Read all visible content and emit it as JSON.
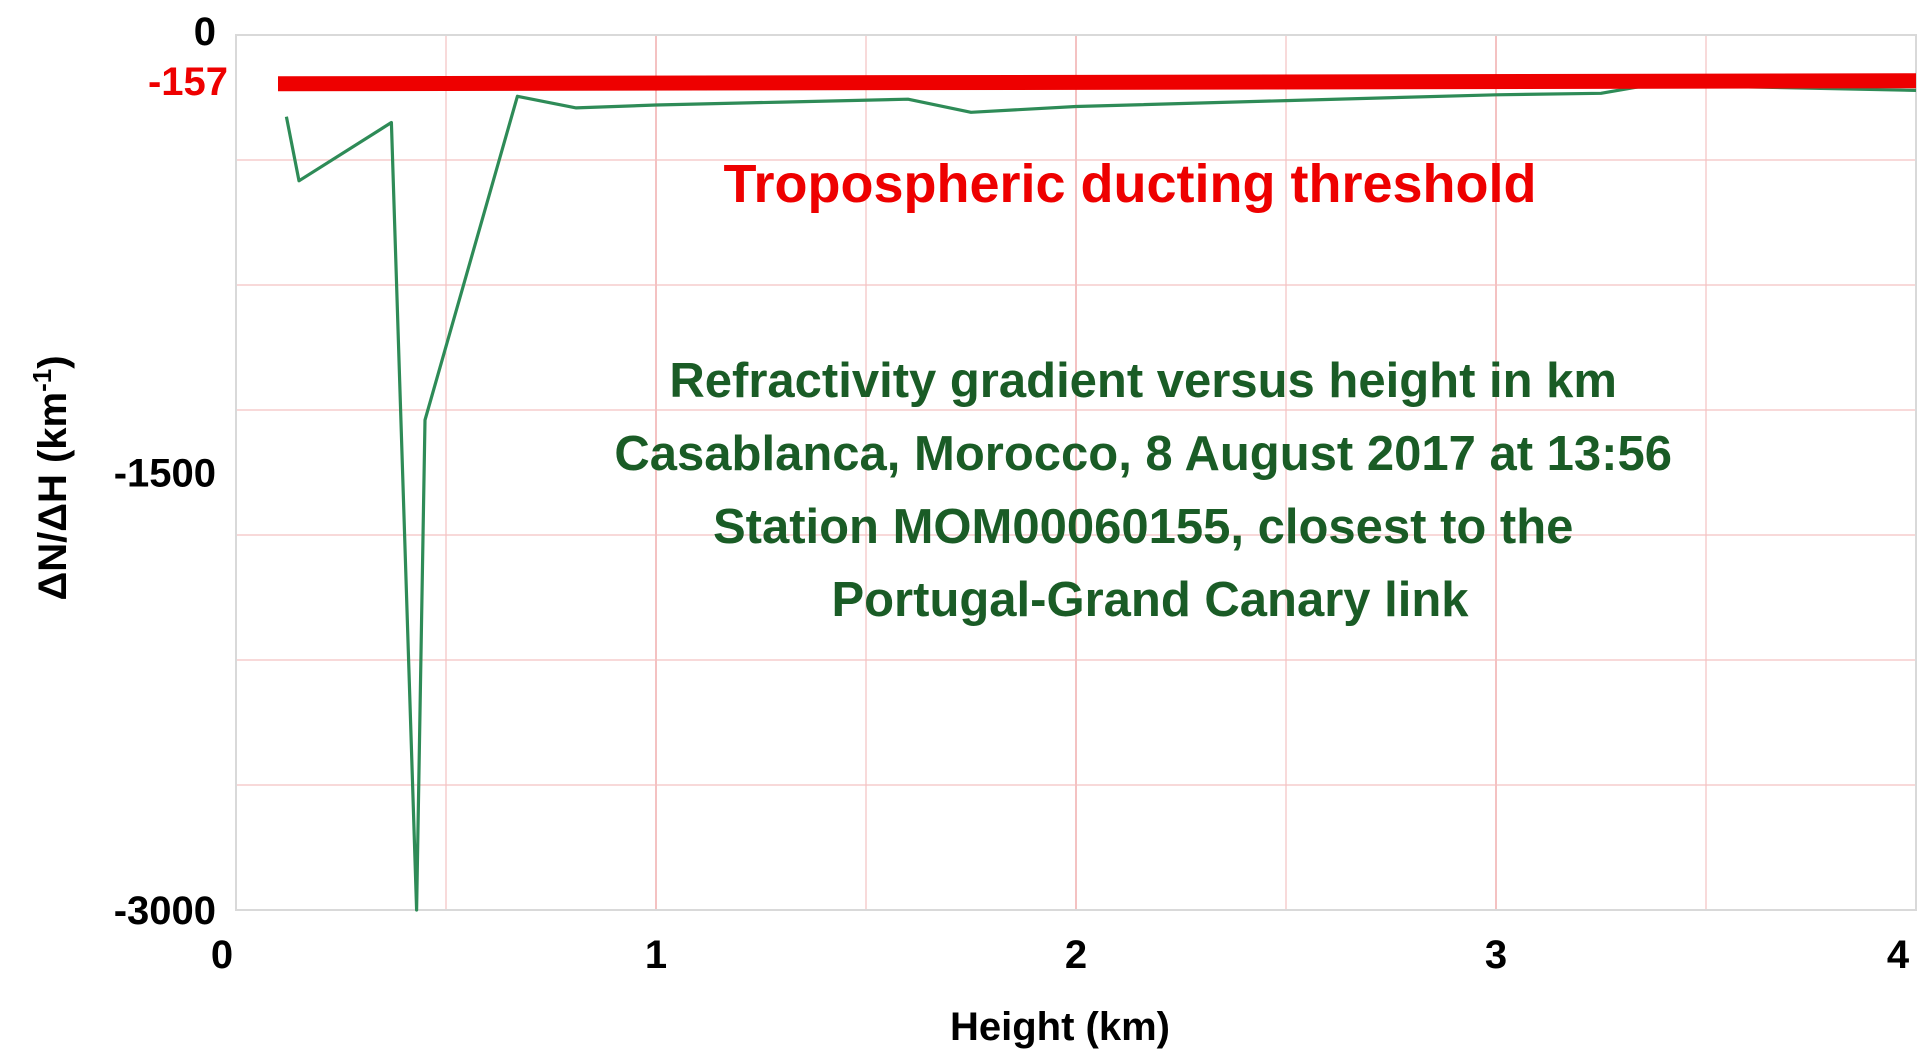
{
  "chart_data": {
    "type": "line",
    "title": "",
    "xlabel": "Height (km)",
    "ylabel_main": "ΔN/ΔH (km",
    "ylabel_sup": "-1",
    "ylabel_close": ")",
    "xlim": [
      0,
      4
    ],
    "ylim": [
      -3000,
      0
    ],
    "x_ticks": [
      0,
      1,
      2,
      3,
      4
    ],
    "x_tick_labels": [
      "0",
      "1",
      "2",
      "3",
      "4"
    ],
    "y_ticks": [
      0,
      -1500,
      -3000
    ],
    "y_tick_labels": [
      "0",
      "-1500",
      "-3000"
    ],
    "grid": true,
    "grid_color": "#f4c2c2",
    "series": [
      {
        "color": "#2e8b57",
        "x": [
          0.12,
          0.15,
          0.37,
          0.43,
          0.45,
          0.67,
          0.81,
          1.0,
          1.3,
          1.6,
          1.75,
          2.0,
          2.5,
          3.0,
          3.25,
          3.35,
          3.5,
          4.0
        ],
        "y": [
          -280,
          -500,
          -300,
          -3000,
          -1320,
          -210,
          -250,
          -240,
          -230,
          -220,
          -265,
          -245,
          -225,
          -205,
          -200,
          -175,
          -175,
          -190
        ]
      }
    ],
    "reference_lines": [
      {
        "y": -157,
        "label": "-157",
        "color": "#ee0000",
        "x_start": 0.1,
        "x_end": 4.0
      }
    ],
    "annotations": [
      {
        "text": "Tropospheric ducting threshold",
        "color": "#ee0000"
      },
      {
        "lines": [
          "Refractivity gradient versus height in km",
          "Casablanca, Morocco, 8 August 2017 at 13:56",
          "Station MOM00060155, closest to the",
          "Portugal-Grand Canary link"
        ],
        "color": "#1a5c26"
      }
    ]
  }
}
